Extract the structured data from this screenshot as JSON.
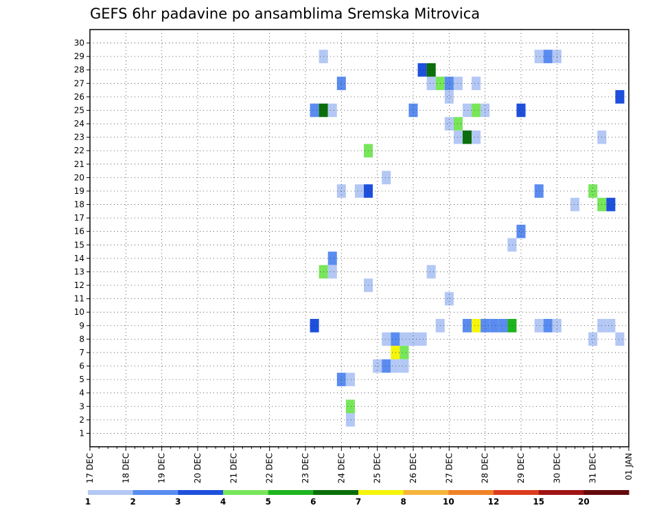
{
  "chart_data": {
    "type": "heatmap",
    "title": "GEFS 6hr padavine po ansamblima Sremska Mitrovica",
    "x_unit": "6-hour steps starting 17 DEC 00Z",
    "x_range": [
      0,
      60
    ],
    "y_range": [
      0,
      31
    ],
    "x_tick_labels": [
      "17 DEC",
      "18 DEC",
      "19 DEC",
      "20 DEC",
      "21 DEC",
      "22 DEC",
      "23 DEC",
      "24 DEC",
      "25 DEC",
      "26 DEC",
      "27 DEC",
      "28 DEC",
      "29 DEC",
      "30 DEC",
      "31 DEC",
      "01 JAN"
    ],
    "y_tick_labels": [
      "1",
      "2",
      "3",
      "4",
      "5",
      "6",
      "7",
      "8",
      "9",
      "10",
      "11",
      "12",
      "13",
      "14",
      "15",
      "16",
      "17",
      "18",
      "19",
      "20",
      "21",
      "22",
      "23",
      "24",
      "25",
      "26",
      "27",
      "28",
      "29",
      "30"
    ],
    "grid": true,
    "colorbar": {
      "colors": [
        "#b4c8f5",
        "#5a8cf0",
        "#1e50dc",
        "#78e65a",
        "#1eb41e",
        "#0a6e0a",
        "#f5f50a",
        "#f5b43c",
        "#f08228",
        "#dc3c1e",
        "#a01414",
        "#640a0a"
      ],
      "labels": [
        "1",
        "2",
        "3",
        "4",
        "5",
        "6",
        "7",
        "8",
        "10",
        "12",
        "15",
        "20"
      ]
    },
    "cells": [
      [
        26,
        29,
        1
      ],
      [
        50,
        29,
        1
      ],
      [
        51,
        29,
        2
      ],
      [
        52,
        29,
        1
      ],
      [
        37,
        28,
        3
      ],
      [
        38,
        28,
        6
      ],
      [
        28,
        27,
        2
      ],
      [
        38,
        27,
        1
      ],
      [
        39,
        27,
        4
      ],
      [
        40,
        27,
        2
      ],
      [
        41,
        27,
        1
      ],
      [
        43,
        27,
        1
      ],
      [
        40,
        26,
        1
      ],
      [
        59,
        26,
        3
      ],
      [
        25,
        25,
        2
      ],
      [
        26,
        25,
        6
      ],
      [
        27,
        25,
        1
      ],
      [
        36,
        25,
        2
      ],
      [
        42,
        25,
        1
      ],
      [
        43,
        25,
        4
      ],
      [
        44,
        25,
        1
      ],
      [
        48,
        25,
        3
      ],
      [
        40,
        24,
        1
      ],
      [
        41,
        24,
        4
      ],
      [
        41,
        23,
        1
      ],
      [
        42,
        23,
        6
      ],
      [
        43,
        23,
        1
      ],
      [
        57,
        23,
        1
      ],
      [
        31,
        22,
        4
      ],
      [
        33,
        20,
        1
      ],
      [
        28,
        19,
        1
      ],
      [
        30,
        19,
        1
      ],
      [
        31,
        19,
        3
      ],
      [
        50,
        19,
        2
      ],
      [
        56,
        19,
        4
      ],
      [
        54,
        18,
        1
      ],
      [
        57,
        18,
        4
      ],
      [
        58,
        18,
        3
      ],
      [
        48,
        16,
        2
      ],
      [
        47,
        15,
        1
      ],
      [
        27,
        14,
        2
      ],
      [
        26,
        13,
        4
      ],
      [
        27,
        13,
        1
      ],
      [
        38,
        13,
        1
      ],
      [
        31,
        12,
        1
      ],
      [
        40,
        11,
        1
      ],
      [
        25,
        9,
        3
      ],
      [
        39,
        9,
        1
      ],
      [
        42,
        9,
        2
      ],
      [
        43,
        9,
        7
      ],
      [
        44,
        9,
        2
      ],
      [
        45,
        9,
        2
      ],
      [
        46,
        9,
        2
      ],
      [
        47,
        9,
        5
      ],
      [
        50,
        9,
        1
      ],
      [
        51,
        9,
        2
      ],
      [
        52,
        9,
        1
      ],
      [
        57,
        9,
        1
      ],
      [
        58,
        9,
        1
      ],
      [
        33,
        8,
        1
      ],
      [
        34,
        8,
        2
      ],
      [
        35,
        8,
        1
      ],
      [
        36,
        8,
        1
      ],
      [
        37,
        8,
        1
      ],
      [
        56,
        8,
        1
      ],
      [
        59,
        8,
        1
      ],
      [
        34,
        7,
        7
      ],
      [
        35,
        7,
        4
      ],
      [
        32,
        6,
        1
      ],
      [
        33,
        6,
        2
      ],
      [
        34,
        6,
        1
      ],
      [
        35,
        6,
        1
      ],
      [
        28,
        5,
        2
      ],
      [
        29,
        5,
        1
      ],
      [
        29,
        3,
        4
      ],
      [
        29,
        2,
        1
      ]
    ]
  }
}
